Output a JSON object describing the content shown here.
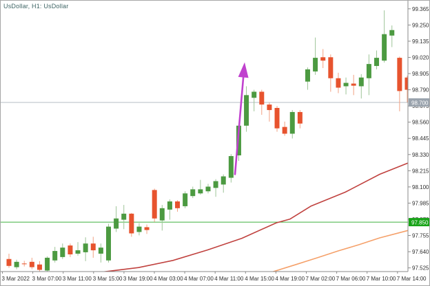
{
  "window": {
    "title": "UsDollar, H1:  UsDollar"
  },
  "colors": {
    "background": "#ffffff",
    "axis_line": "#8a8a8a",
    "tick_text": "#2e2e2e",
    "title_text": "#3c6363",
    "candle_up_body": "#4c9a41",
    "candle_up_wick": "#9dc497",
    "candle_down_body": "#e7532e",
    "candle_down_wick": "#f2a182",
    "current_price_line": "#b6bcc6",
    "current_price_tag_bg": "#9aa3ad",
    "support_line": "#3cb13c",
    "support_tag_bg": "#17a317",
    "ma_red": "#c0413e",
    "ma_orange": "#f5a069",
    "arrow": "#c042ce",
    "tag_text": "#ffffff"
  },
  "chart_data": {
    "type": "candlestick",
    "symbol": "UsDollar",
    "timeframe": "H1",
    "title": "UsDollar, H1:  UsDollar",
    "current_price": 98.7,
    "current_price_label": "98.700",
    "support_price": 97.85,
    "support_price_label": "97.850",
    "ylim": [
      97.46,
      99.42
    ],
    "y_ticks": [
      99.365,
      99.25,
      99.135,
      99.02,
      98.905,
      98.79,
      98.675,
      98.56,
      98.445,
      98.33,
      98.215,
      98.1,
      97.985,
      97.87,
      97.755,
      97.64,
      97.525
    ],
    "x_labels": [
      "3 Mar 2022",
      "3 Mar 07:00",
      "3 Mar 11:00",
      "3 Mar 15:00",
      "3 Mar 19:00",
      "4 Mar 03:00",
      "4 Mar 07:00",
      "4 Mar 11:00",
      "4 Mar 15:00",
      "4 Mar 19:00",
      "7 Mar 02:00",
      "7 Mar 06:00",
      "7 Mar 10:00",
      "7 Mar 14:00"
    ],
    "candles_ohlc": [
      [
        97.588,
        97.626,
        97.525,
        97.539
      ],
      [
        97.53,
        97.583,
        97.515,
        97.568
      ],
      [
        97.556,
        97.575,
        97.535,
        97.551
      ],
      [
        97.568,
        97.597,
        97.515,
        97.53
      ],
      [
        97.549,
        97.573,
        97.501,
        97.511
      ],
      [
        97.506,
        97.607,
        97.501,
        97.597
      ],
      [
        97.578,
        97.674,
        97.563,
        97.645
      ],
      [
        97.602,
        97.698,
        97.588,
        97.669
      ],
      [
        97.684,
        97.698,
        97.602,
        97.621
      ],
      [
        97.626,
        97.708,
        97.612,
        97.65
      ],
      [
        97.636,
        97.742,
        97.573,
        97.698
      ],
      [
        97.698,
        97.746,
        97.597,
        97.65
      ],
      [
        97.626,
        97.698,
        97.563,
        97.669
      ],
      [
        97.578,
        97.838,
        97.563,
        97.818
      ],
      [
        97.804,
        97.963,
        97.78,
        97.876
      ],
      [
        97.867,
        97.972,
        97.8,
        97.91
      ],
      [
        97.91,
        97.915,
        97.746,
        97.77
      ],
      [
        97.78,
        97.843,
        97.756,
        97.818
      ],
      [
        97.814,
        97.833,
        97.766,
        97.794
      ],
      [
        98.078,
        98.088,
        97.852,
        97.876
      ],
      [
        97.862,
        97.972,
        97.79,
        97.949
      ],
      [
        97.939,
        98.011,
        97.867,
        97.997
      ],
      [
        97.997,
        98.006,
        97.924,
        97.949
      ],
      [
        97.963,
        98.069,
        97.949,
        98.054
      ],
      [
        98.035,
        98.102,
        98.021,
        98.083
      ],
      [
        98.054,
        98.15,
        98.045,
        98.083
      ],
      [
        98.069,
        98.122,
        98.054,
        98.102
      ],
      [
        98.093,
        98.155,
        98.03,
        98.141
      ],
      [
        98.117,
        98.189,
        98.059,
        98.175
      ],
      [
        98.165,
        98.333,
        98.131,
        98.319
      ],
      [
        98.324,
        98.54,
        98.285,
        98.535
      ],
      [
        98.535,
        98.815,
        98.492,
        98.752
      ],
      [
        98.733,
        98.79,
        98.637,
        98.776
      ],
      [
        98.776,
        98.79,
        98.612,
        98.685
      ],
      [
        98.685,
        98.699,
        98.564,
        98.646
      ],
      [
        98.661,
        98.675,
        98.492,
        98.516
      ],
      [
        98.526,
        98.564,
        98.463,
        98.478
      ],
      [
        98.478,
        98.646,
        98.444,
        98.632
      ],
      [
        98.632,
        98.646,
        98.516,
        98.55
      ],
      [
        98.848,
        98.949,
        98.79,
        98.935
      ],
      [
        98.92,
        99.161,
        98.896,
        99.017
      ],
      [
        99.021,
        99.079,
        98.944,
        98.997
      ],
      [
        99.021,
        99.041,
        98.776,
        98.872
      ],
      [
        98.872,
        98.911,
        98.766,
        98.805
      ],
      [
        98.815,
        98.877,
        98.757,
        98.839
      ],
      [
        98.834,
        98.896,
        98.752,
        98.819
      ],
      [
        98.815,
        98.901,
        98.728,
        98.877
      ],
      [
        98.872,
        99.041,
        98.752,
        98.973
      ],
      [
        98.959,
        99.069,
        98.935,
        99.017
      ],
      [
        98.997,
        99.354,
        98.983,
        99.185
      ],
      [
        99.175,
        99.247,
        99.093,
        99.214
      ],
      [
        99.017,
        99.026,
        98.637,
        98.781
      ],
      [
        98.877,
        98.89,
        98.7,
        98.79
      ]
    ],
    "ma_red_points": [
      [
        148,
        97.496
      ],
      [
        200,
        97.527
      ],
      [
        250,
        97.578
      ],
      [
        300,
        97.652
      ],
      [
        350,
        97.735
      ],
      [
        400,
        97.845
      ],
      [
        420,
        97.872
      ],
      [
        450,
        97.963
      ],
      [
        500,
        98.063
      ],
      [
        550,
        98.19
      ],
      [
        592,
        98.272
      ]
    ],
    "ma_orange_points": [
      [
        390,
        97.49
      ],
      [
        430,
        97.551
      ],
      [
        460,
        97.598
      ],
      [
        490,
        97.646
      ],
      [
        520,
        97.69
      ],
      [
        550,
        97.738
      ],
      [
        592,
        97.792
      ]
    ],
    "arrow_annotation": {
      "from_x": 340,
      "from_price": 98.19,
      "to_x": 354,
      "to_price": 98.985
    }
  }
}
